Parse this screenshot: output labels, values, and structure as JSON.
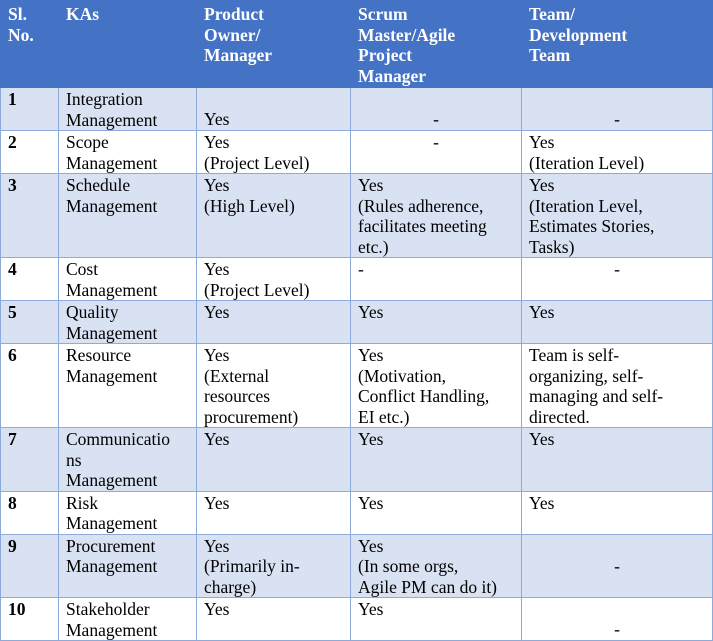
{
  "headers": [
    "Sl.\nNo.",
    "KAs",
    "Product\nOwner/\nManager",
    "Scrum\nMaster/Agile\nProject\nManager",
    "Team/\nDevelopment\nTeam"
  ],
  "rows": [
    [
      "1",
      "Integration\nManagement",
      "Yes",
      "-",
      "-"
    ],
    [
      "2",
      "Scope\nManagement",
      "Yes\n(Project Level)",
      "-",
      "Yes\n(Iteration Level)"
    ],
    [
      "3",
      "Schedule\nManagement",
      "Yes\n(High Level)",
      "Yes\n(Rules adherence,\nfacilitates meeting\netc.)",
      "Yes\n(Iteration Level,\nEstimates Stories,\nTasks)"
    ],
    [
      "4",
      "Cost\nManagement",
      "Yes\n(Project Level)",
      "-",
      "-"
    ],
    [
      "5",
      "Quality\nManagement",
      "Yes",
      "Yes",
      "Yes"
    ],
    [
      "6",
      "Resource\nManagement",
      "Yes\n(External\nresources\nprocurement)",
      "Yes\n(Motivation,\nConflict Handling,\nEI etc.)",
      "Team is self-\norganizing, self-\nmanaging and self-\ndirected."
    ],
    [
      "7",
      "Communicatio\nns\nManagement",
      "Yes",
      "Yes",
      "Yes"
    ],
    [
      "8",
      "Risk\nManagement",
      "Yes",
      "Yes",
      "Yes"
    ],
    [
      "9",
      "Procurement\nManagement",
      "Yes\n(Primarily in-\ncharge)",
      "Yes\n(In some orgs,\nAgile PM can do it)",
      "-"
    ],
    [
      "10",
      "Stakeholder\nManagement",
      "Yes",
      "Yes",
      "-"
    ]
  ]
}
